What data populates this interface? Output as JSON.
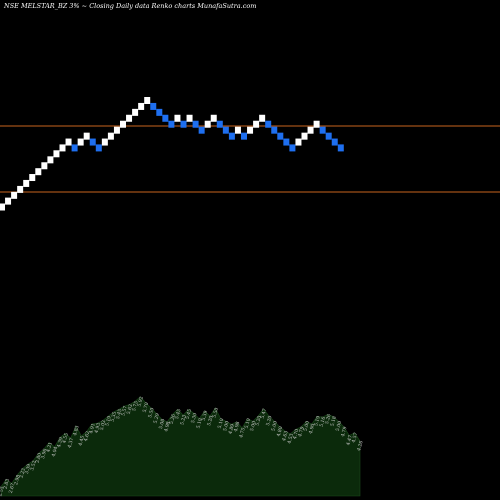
{
  "chart_data": {
    "type": "renko",
    "title": "NSE MELSTAR_BZ 3% ~  Closing Daily data  Renko  charts MunafaSutra.com",
    "bricks": [
      {
        "dir": "up",
        "value": 0.952
      },
      {
        "dir": "up",
        "value": 1.07
      },
      {
        "dir": "up",
        "value": 1.2
      },
      {
        "dir": "up",
        "value": 1.35
      },
      {
        "dir": "up",
        "value": 1.52
      },
      {
        "dir": "up",
        "value": 1.71
      },
      {
        "dir": "up",
        "value": 1.92
      },
      {
        "dir": "up",
        "value": 2.16
      },
      {
        "dir": "up",
        "value": 2.43
      },
      {
        "dir": "up",
        "value": 2.74
      },
      {
        "dir": "up",
        "value": 3.08
      },
      {
        "dir": "up",
        "value": 3.46
      },
      {
        "dir": "down",
        "value": 3.08
      },
      {
        "dir": "up",
        "value": 3.46
      },
      {
        "dir": "up",
        "value": 3.89
      },
      {
        "dir": "down",
        "value": 3.46
      },
      {
        "dir": "down",
        "value": 3.08
      },
      {
        "dir": "up",
        "value": 3.46
      },
      {
        "dir": "up",
        "value": 3.89
      },
      {
        "dir": "up",
        "value": 4.38
      },
      {
        "dir": "up",
        "value": 4.93
      },
      {
        "dir": "up",
        "value": 5.55
      },
      {
        "dir": "up",
        "value": 6.24
      },
      {
        "dir": "up",
        "value": 7.02
      },
      {
        "dir": "up",
        "value": 7.9
      },
      {
        "dir": "down",
        "value": 7.02
      },
      {
        "dir": "down",
        "value": 6.24
      },
      {
        "dir": "down",
        "value": 5.55
      },
      {
        "dir": "down",
        "value": 4.93
      },
      {
        "dir": "up",
        "value": 5.55
      },
      {
        "dir": "down",
        "value": 4.93
      },
      {
        "dir": "up",
        "value": 5.55
      },
      {
        "dir": "down",
        "value": 4.93
      },
      {
        "dir": "down",
        "value": 4.38
      },
      {
        "dir": "up",
        "value": 4.93
      },
      {
        "dir": "up",
        "value": 5.55
      },
      {
        "dir": "down",
        "value": 4.93
      },
      {
        "dir": "down",
        "value": 4.38
      },
      {
        "dir": "down",
        "value": 3.89
      },
      {
        "dir": "up",
        "value": 4.38
      },
      {
        "dir": "down",
        "value": 3.89
      },
      {
        "dir": "up",
        "value": 4.38
      },
      {
        "dir": "up",
        "value": 4.93
      },
      {
        "dir": "up",
        "value": 5.55
      },
      {
        "dir": "down",
        "value": 4.93
      },
      {
        "dir": "down",
        "value": 4.38
      },
      {
        "dir": "down",
        "value": 3.89
      },
      {
        "dir": "down",
        "value": 3.46
      },
      {
        "dir": "down",
        "value": 3.08
      },
      {
        "dir": "up",
        "value": 3.46
      },
      {
        "dir": "up",
        "value": 3.89
      },
      {
        "dir": "up",
        "value": 4.38
      },
      {
        "dir": "up",
        "value": 4.93
      },
      {
        "dir": "down",
        "value": 4.38
      },
      {
        "dir": "down",
        "value": 3.89
      },
      {
        "dir": "down",
        "value": 3.46
      },
      {
        "dir": "down",
        "value": 3.08
      }
    ],
    "volume_labels": [
      "2.55",
      "2.83",
      "2.67",
      "2.98",
      "3.23",
      "3.39",
      "3.52",
      "3.80",
      "3.96",
      "4.21",
      "4.04",
      "4.39",
      "4.55",
      "4.37",
      "4.83",
      "4.45",
      "4.62",
      "4.91",
      "4.93",
      "5.03",
      "5.19",
      "5.35",
      "5.45",
      "5.57",
      "5.63",
      "5.75",
      "5.92",
      "5.70",
      "5.50",
      "5.29",
      "5.08",
      "4.98",
      "5.26",
      "5.45",
      "5.23",
      "5.45",
      "5.30",
      "5.10",
      "5.39",
      "5.20",
      "5.50",
      "5.10",
      "5.00",
      "4.89",
      "4.98",
      "4.75",
      "5.10",
      "5.00",
      "5.20",
      "5.47",
      "5.20",
      "5.00",
      "4.80",
      "4.63",
      "4.53",
      "4.70",
      "4.79",
      "5.00",
      "4.90",
      "5.19",
      "5.16",
      "5.26",
      "5.18",
      "5.00",
      "4.79",
      "4.47",
      "4.57",
      "4.26"
    ],
    "colors": {
      "background": "#000000",
      "up_brick": "#ffffff",
      "down_brick": "#1e6ff0",
      "level_line": "#c9651e",
      "volume_fill": "#0b2a0b"
    }
  }
}
